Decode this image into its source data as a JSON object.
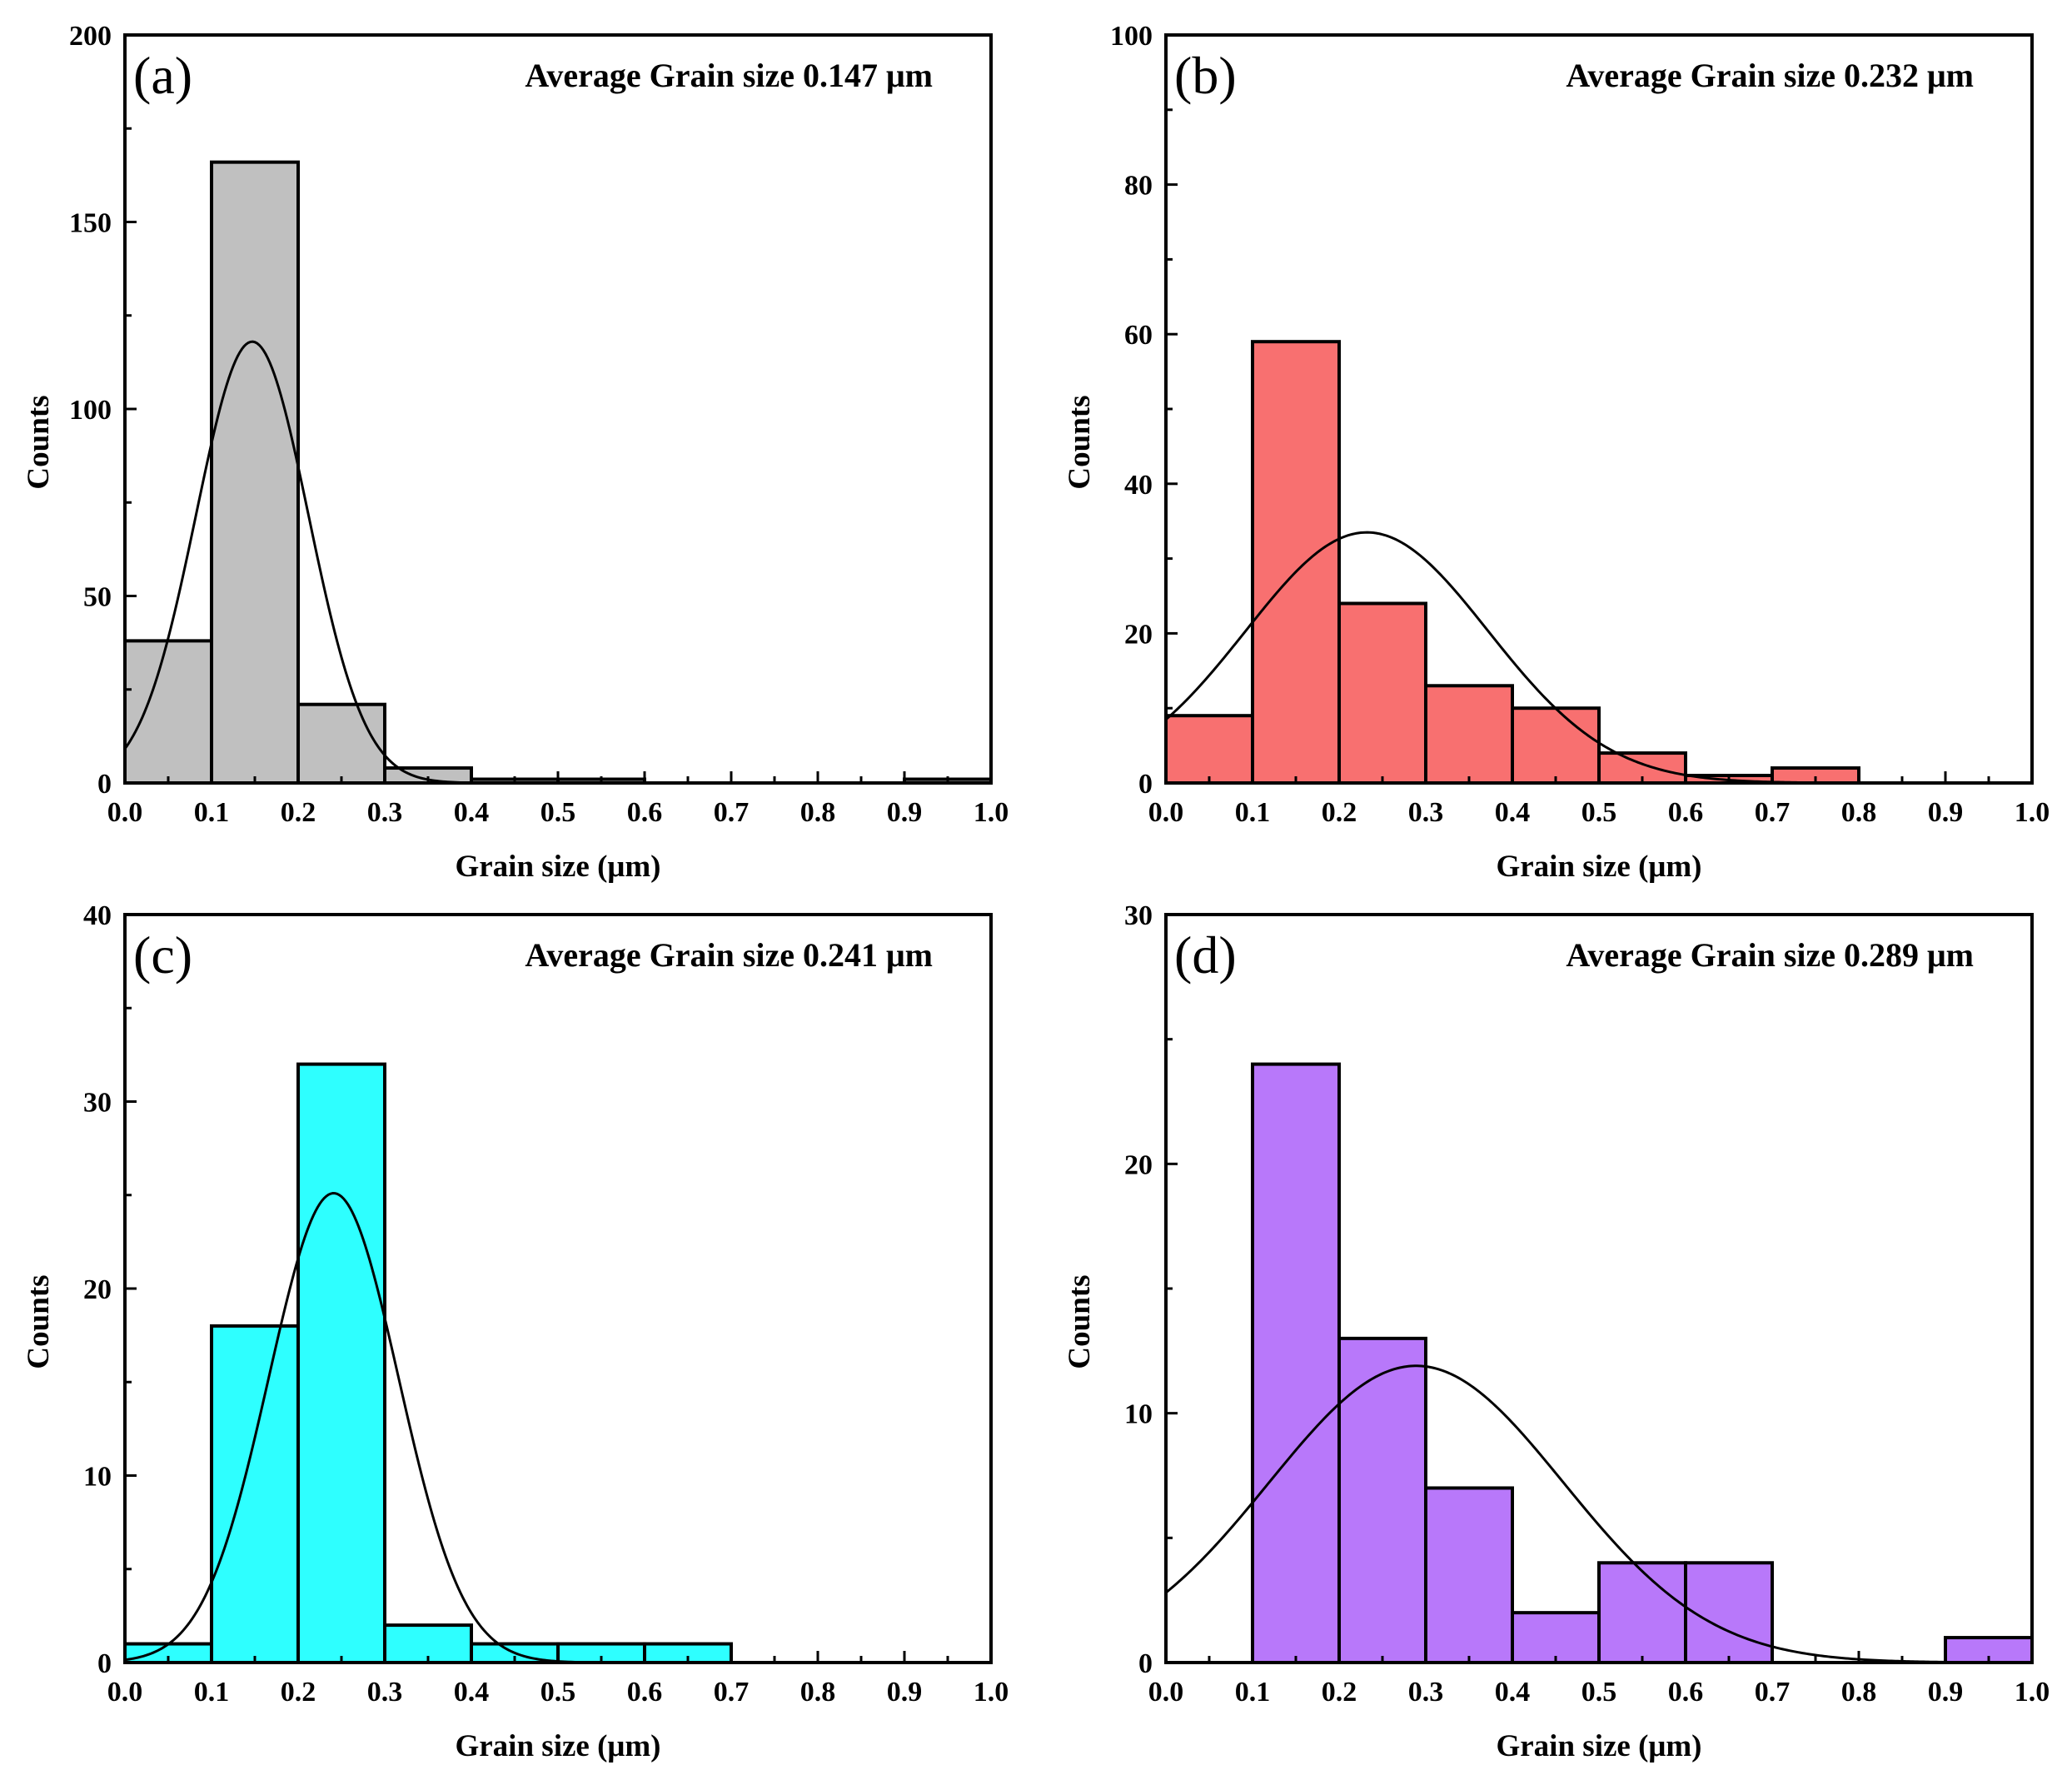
{
  "figure": {
    "x_axis_title": "Grain size (μm)",
    "y_axis_title": "Counts",
    "x_ticks": [
      "0.0",
      "0.1",
      "0.2",
      "0.3",
      "0.4",
      "0.5",
      "0.6",
      "0.7",
      "0.8",
      "0.9",
      "1.0"
    ]
  },
  "chart_data": [
    {
      "type": "bar",
      "panel_label": "(a)",
      "annotation": "Average Grain size 0.147 μm",
      "xlabel": "Grain size (μm)",
      "ylabel": "Counts",
      "xlim": [
        0,
        1
      ],
      "ylim": [
        0,
        200
      ],
      "y_ticks": [
        "0",
        "50",
        "100",
        "150",
        "200"
      ],
      "bin_width": 0.1,
      "bins": [
        0.0,
        0.1,
        0.2,
        0.3,
        0.4,
        0.5,
        0.6,
        0.7,
        0.8,
        0.9
      ],
      "values": [
        38,
        166,
        21,
        4,
        1,
        1,
        0,
        0,
        0,
        1
      ],
      "fit_peak_x": 0.147,
      "fit_peak_y": 118,
      "fit_sigma": 0.065,
      "color": "#c0c0c0"
    },
    {
      "type": "bar",
      "panel_label": "(b)",
      "annotation": "Average Grain size 0.232 μm",
      "xlabel": "Grain size (μm)",
      "ylabel": "Counts",
      "xlim": [
        0,
        1
      ],
      "ylim": [
        0,
        100
      ],
      "y_ticks": [
        "0",
        "20",
        "40",
        "60",
        "80",
        "100"
      ],
      "bin_width": 0.1,
      "bins": [
        0.0,
        0.1,
        0.2,
        0.3,
        0.4,
        0.5,
        0.6,
        0.7,
        0.8,
        0.9
      ],
      "values": [
        9,
        59,
        24,
        13,
        10,
        4,
        1,
        2,
        0,
        0
      ],
      "fit_peak_x": 0.232,
      "fit_peak_y": 33.5,
      "fit_sigma": 0.14,
      "color": "#f87070"
    },
    {
      "type": "bar",
      "panel_label": "(c)",
      "annotation": "Average Grain size 0.241 μm",
      "xlabel": "Grain size (μm)",
      "ylabel": "Counts",
      "xlim": [
        0,
        1
      ],
      "ylim": [
        0,
        40
      ],
      "y_ticks": [
        "0",
        "10",
        "20",
        "30",
        "40"
      ],
      "bin_width": 0.1,
      "bins": [
        0.0,
        0.1,
        0.2,
        0.3,
        0.4,
        0.5,
        0.6,
        0.7,
        0.8,
        0.9
      ],
      "values": [
        1,
        18,
        32,
        2,
        1,
        1,
        1,
        0,
        0,
        0
      ],
      "fit_peak_x": 0.241,
      "fit_peak_y": 25.1,
      "fit_sigma": 0.075,
      "color": "#2effff"
    },
    {
      "type": "bar",
      "panel_label": "(d)",
      "annotation": "Average Grain size 0.289 μm",
      "xlabel": "Grain size (μm)",
      "ylabel": "Counts",
      "xlim": [
        0,
        1
      ],
      "ylim": [
        0,
        30
      ],
      "y_ticks": [
        "0",
        "10",
        "20",
        "30"
      ],
      "bin_width": 0.1,
      "bins": [
        0.0,
        0.1,
        0.2,
        0.3,
        0.4,
        0.5,
        0.6,
        0.7,
        0.8,
        0.9
      ],
      "values": [
        0,
        24,
        13,
        7,
        2,
        4,
        4,
        0,
        0,
        1
      ],
      "fit_peak_x": 0.289,
      "fit_peak_y": 11.9,
      "fit_sigma": 0.17,
      "color": "#b878fa"
    }
  ]
}
